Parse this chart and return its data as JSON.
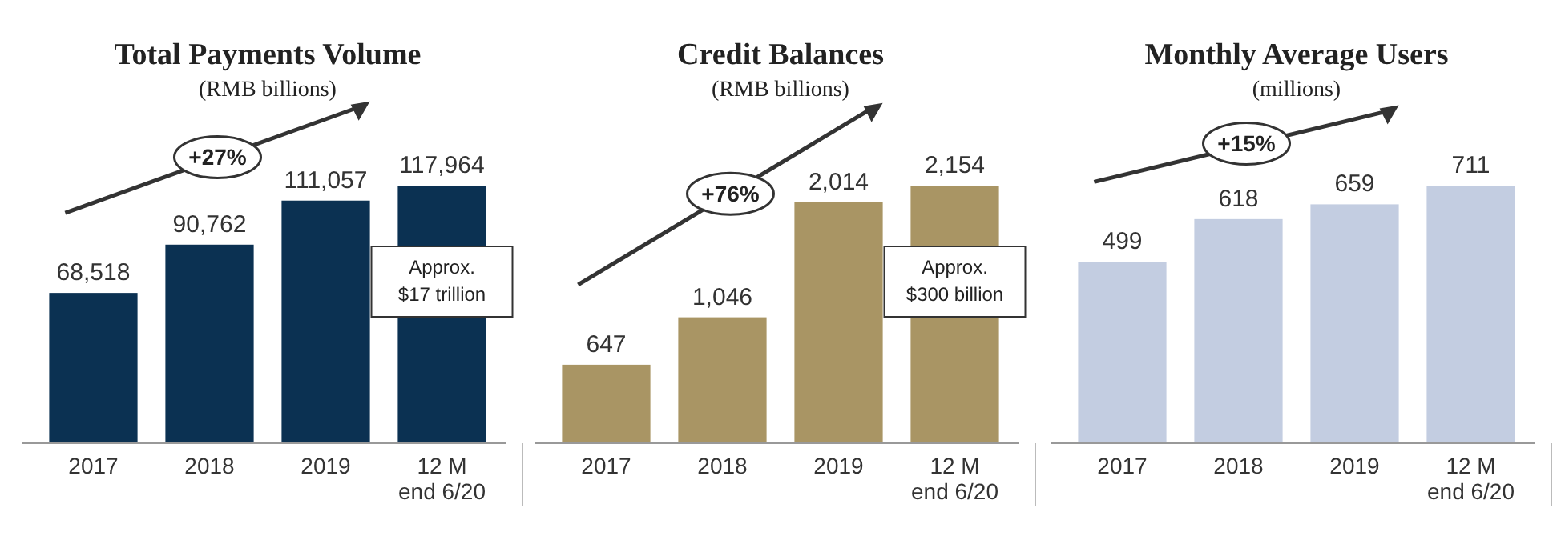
{
  "chart_data": [
    {
      "type": "bar",
      "title": "Total Payments Volume",
      "subtitle": "(RMB billions)",
      "categories": [
        "2017",
        "2018",
        "2019",
        "12 M\nend 6/20"
      ],
      "values": [
        68518,
        90762,
        111057,
        117964
      ],
      "value_labels": [
        "68,518",
        "90,762",
        "111,057",
        "117,964"
      ],
      "data_labels": true,
      "color": "#0b3152",
      "annotations": [
        "+27%",
        "Approx.\n$17 trillion"
      ]
    },
    {
      "type": "bar",
      "title": "Credit Balances",
      "subtitle": "(RMB billions)",
      "categories": [
        "2017",
        "2018",
        "2019",
        "12 M\nend 6/20"
      ],
      "values": [
        647,
        1046,
        2014,
        2154
      ],
      "value_labels": [
        "647",
        "1,046",
        "2,014",
        "2,154"
      ],
      "data_labels": true,
      "color": "#a99564",
      "annotations": [
        "+76%",
        "Approx.\n$300 billion"
      ]
    },
    {
      "type": "bar",
      "title": "Monthly Average Users",
      "subtitle": "(millions)",
      "categories": [
        "2017",
        "2018",
        "2019",
        "12 M\nend 6/20"
      ],
      "values": [
        499,
        618,
        659,
        711
      ],
      "value_labels": [
        "499",
        "618",
        "659",
        "711"
      ],
      "data_labels": true,
      "color": "#c3cde1",
      "annotations": [
        "+15%"
      ]
    }
  ]
}
